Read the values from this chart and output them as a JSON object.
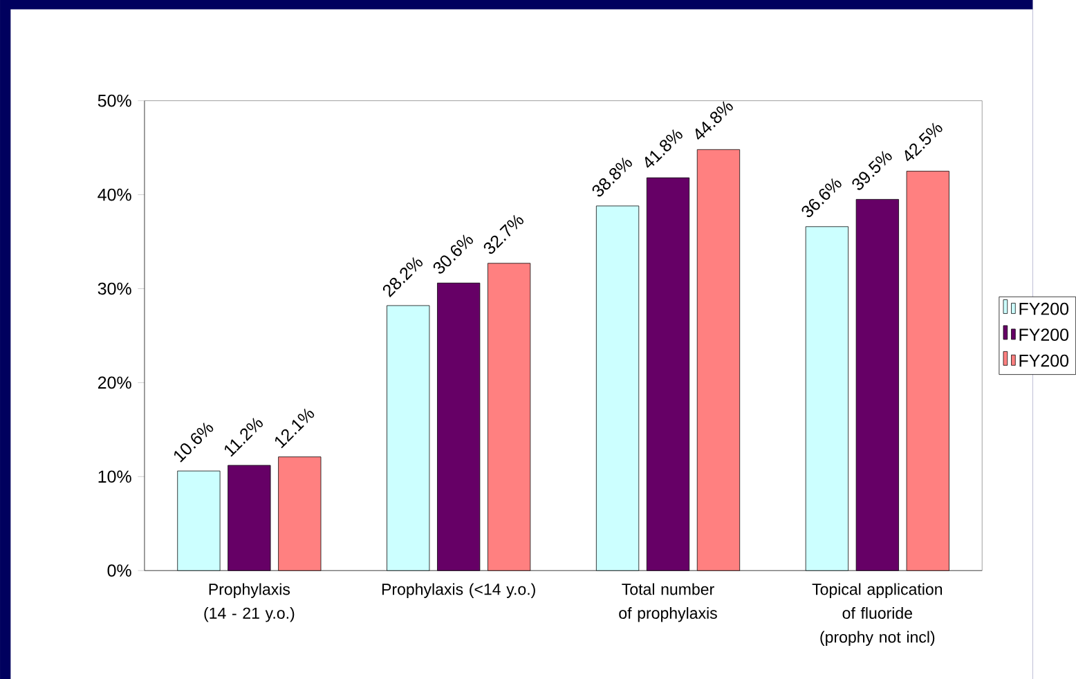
{
  "chart_data": {
    "type": "bar",
    "categories": [
      "Prophylaxis (14 - 21 y.o.)",
      "Prophylaxis (<14 y.o.)",
      "Total number of prophylaxis",
      "Topical application of fluoride (prophy not incl)"
    ],
    "series": [
      {
        "name": "FY200",
        "color": "#ccffff",
        "values": [
          10.6,
          28.2,
          38.8,
          36.6
        ],
        "value_labels": [
          "10.6%",
          "28.2%",
          "38.8%",
          "36.6%"
        ]
      },
      {
        "name": "FY200",
        "color": "#660066",
        "values": [
          11.2,
          30.6,
          41.8,
          39.5
        ],
        "value_labels": [
          "11.2%",
          "30.6%",
          "41.8%",
          "39.5%"
        ]
      },
      {
        "name": "FY200",
        "color": "#ff8080",
        "values": [
          12.1,
          32.7,
          44.8,
          42.5
        ],
        "value_labels": [
          "12.1%",
          "32.7%",
          "44.8%",
          "42.5%"
        ]
      }
    ],
    "ylim": [
      0,
      50
    ],
    "yticks": [
      {
        "value": 0,
        "label": "0%"
      },
      {
        "value": 10,
        "label": "10%"
      },
      {
        "value": 20,
        "label": "20%"
      },
      {
        "value": 30,
        "label": "30%"
      },
      {
        "value": 40,
        "label": "40%"
      },
      {
        "value": 50,
        "label": "50%"
      }
    ],
    "grid": false,
    "legend": "right"
  }
}
